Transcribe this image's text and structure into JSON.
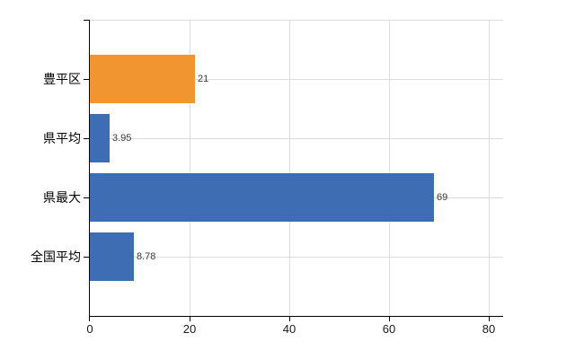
{
  "chart_data": {
    "type": "bar",
    "orientation": "horizontal",
    "categories": [
      "豊平区",
      "県平均",
      "県最大",
      "全国平均"
    ],
    "values": [
      21,
      3.95,
      69,
      8.78
    ],
    "value_labels": [
      "21",
      "3.95",
      "69",
      "8.78"
    ],
    "series_colors": [
      "#f0952f",
      "#3e6db4",
      "#3e6db4",
      "#3e6db4"
    ],
    "highlight_index": 0,
    "x_ticks": [
      0,
      20,
      40,
      60,
      80
    ],
    "x_tick_labels": [
      "0",
      "20",
      "40",
      "60",
      "80"
    ],
    "xlim": [
      0,
      82.8
    ],
    "grid": true,
    "legend_position": "none"
  },
  "colors": {
    "highlight_bar": "#f0952f",
    "default_bar": "#3e6db4",
    "gridline": "#dcdcdc",
    "axis": "#000000",
    "value_label_text": "#3a3a3a",
    "category_label_text": "#000000",
    "tick_label_text": "#1a1a1a",
    "background": "#ffffff"
  }
}
